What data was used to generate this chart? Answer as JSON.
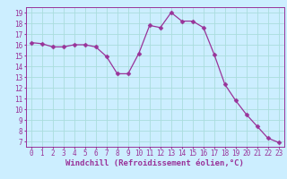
{
  "x": [
    0,
    1,
    2,
    3,
    4,
    5,
    6,
    7,
    8,
    9,
    10,
    11,
    12,
    13,
    14,
    15,
    16,
    17,
    18,
    19,
    20,
    21,
    22,
    23
  ],
  "y": [
    16.2,
    16.1,
    15.8,
    15.8,
    16.0,
    16.0,
    15.8,
    14.9,
    13.3,
    13.3,
    15.2,
    17.8,
    17.6,
    19.0,
    18.2,
    18.2,
    17.6,
    15.1,
    12.3,
    10.8,
    9.5,
    8.4,
    7.3,
    6.9
  ],
  "line_color": "#993399",
  "marker": "D",
  "marker_size": 2.5,
  "bg_color": "#cceeff",
  "grid_color": "#aadddd",
  "xlabel": "Windchill (Refroidissement éolien,°C)",
  "ylim_min": 7,
  "ylim_max": 19,
  "xlim_min": 0,
  "xlim_max": 23,
  "yticks": [
    7,
    8,
    9,
    10,
    11,
    12,
    13,
    14,
    15,
    16,
    17,
    18,
    19
  ],
  "xticks": [
    0,
    1,
    2,
    3,
    4,
    5,
    6,
    7,
    8,
    9,
    10,
    11,
    12,
    13,
    14,
    15,
    16,
    17,
    18,
    19,
    20,
    21,
    22,
    23
  ],
  "tick_label_fontsize": 5.5,
  "xlabel_fontsize": 6.5
}
